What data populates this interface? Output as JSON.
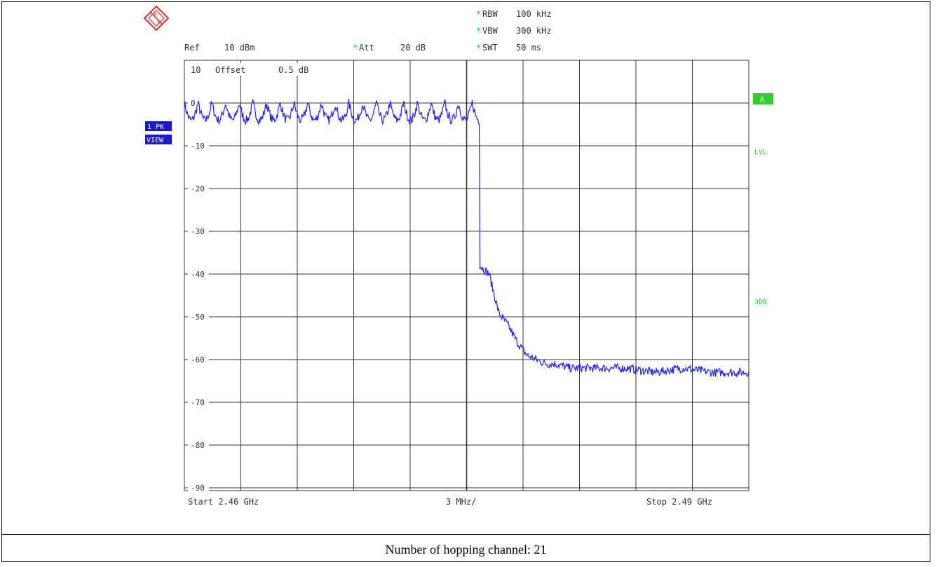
{
  "caption": "Number of hopping channel: 21",
  "header": {
    "ref_label": "Ref",
    "ref_value": "10 dBm",
    "att_label": "Att",
    "att_value": "20 dB",
    "rbw_label": "RBW",
    "rbw_value": "100 kHz",
    "vbw_label": "VBW",
    "vbw_value": "300 kHz",
    "swt_label": "SWT",
    "swt_value": "50 ms",
    "star": "*",
    "scale_label": "10",
    "offset_label": "Offset",
    "offset_value": "0.5 dB"
  },
  "side": {
    "trace_label_1": "1 PK",
    "trace_label_2": "VIEW",
    "marker_a": "A",
    "lvl": "LVL",
    "three_db": "3DB"
  },
  "footer": {
    "start": "Start  2.46 GHz",
    "span_per_div": "3 MHz/",
    "stop": "Stop  2.49 GHz"
  },
  "colors": {
    "trace": "#2222ee",
    "grid": "#333333",
    "green": "#33cc33",
    "label_blue": "#1a1acc"
  },
  "chart_data": {
    "type": "line",
    "title": "",
    "xlabel": "",
    "ylabel": "",
    "xlim": [
      2.46,
      2.49
    ],
    "ylim": [
      -95,
      10
    ],
    "x_unit": "GHz",
    "y_unit": "dBm",
    "y_tick_labels": [
      "0",
      "-10",
      "-20",
      "-30",
      "-40",
      "-50",
      "-60",
      "-70",
      "-80",
      "-90"
    ],
    "y_tick_values": [
      0,
      -10,
      -20,
      -30,
      -40,
      -50,
      -60,
      -70,
      -80,
      -90
    ],
    "grid": true,
    "hopping_channels": 21,
    "series": [
      {
        "values_description_free": true,
        "x": [
          2.46,
          2.4607,
          2.4614,
          2.4621,
          2.4628,
          2.4635,
          2.4642,
          2.4649,
          2.4656,
          2.4663,
          2.467,
          2.4677,
          2.4684,
          2.4691,
          2.4698,
          2.4705,
          2.4712,
          2.4719,
          2.4726,
          2.4733,
          2.474,
          2.47455,
          2.4748,
          2.4751,
          2.4754,
          2.4757,
          2.4762,
          2.4767,
          2.4772,
          2.4777,
          2.4782,
          2.4787,
          2.4792,
          2.4797,
          2.4805,
          2.482,
          2.4835,
          2.485,
          2.4865,
          2.488,
          2.49
        ],
        "y": [
          -1,
          -2,
          -3,
          -2,
          -1,
          -3,
          -2,
          -1,
          -2,
          -3,
          -1,
          -2,
          -1,
          -3,
          -2,
          -1,
          -3,
          -2,
          -1,
          -2,
          -1,
          -1,
          -3,
          -12,
          -25,
          -38,
          -40,
          -49,
          -52,
          -56,
          -59,
          -60,
          -61,
          -61,
          -62,
          -62,
          -62,
          -63,
          -62,
          -63,
          -63
        ]
      }
    ]
  }
}
